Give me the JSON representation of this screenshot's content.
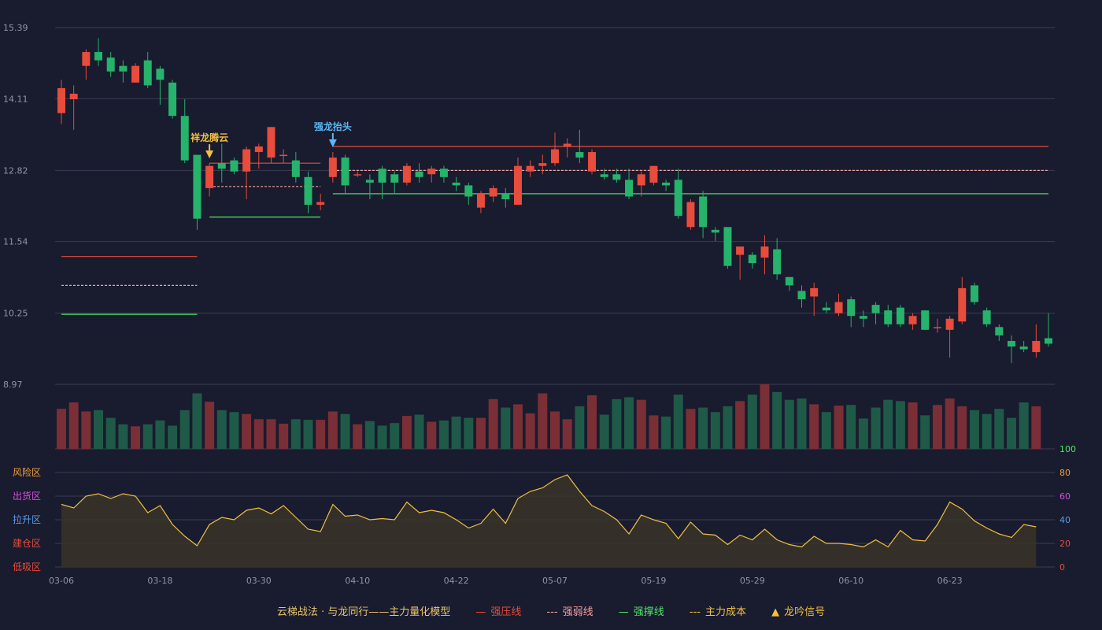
{
  "chart_data": {
    "type": "candlestick",
    "price_axis": {
      "ticks": [
        "15.39",
        "14.11",
        "12.82",
        "11.54",
        "10.25",
        "8.97"
      ],
      "ylim": [
        8.97,
        15.39
      ]
    },
    "x_tick_labels": [
      "03-06",
      "03-18",
      "03-30",
      "04-10",
      "04-22",
      "05-07",
      "05-19",
      "05-29",
      "06-10",
      "06-23"
    ],
    "candles": [
      [
        13.85,
        14.3,
        13.65,
        14.45
      ],
      [
        14.1,
        14.2,
        13.55,
        14.35
      ],
      [
        14.7,
        14.95,
        14.45,
        15.0
      ],
      [
        14.95,
        14.8,
        14.7,
        15.2
      ],
      [
        14.85,
        14.6,
        14.5,
        14.95
      ],
      [
        14.7,
        14.6,
        14.4,
        14.8
      ],
      [
        14.4,
        14.7,
        14.4,
        14.75
      ],
      [
        14.8,
        14.35,
        14.3,
        14.95
      ],
      [
        14.65,
        14.45,
        14.0,
        14.7
      ],
      [
        14.4,
        13.8,
        13.75,
        14.45
      ],
      [
        13.8,
        13.0,
        12.95,
        14.1
      ],
      [
        13.1,
        11.95,
        11.75,
        13.1
      ],
      [
        12.5,
        12.9,
        12.35,
        12.95
      ],
      [
        12.95,
        12.85,
        12.6,
        13.3
      ],
      [
        13.0,
        12.8,
        12.75,
        13.05
      ],
      [
        12.8,
        13.2,
        12.3,
        13.25
      ],
      [
        13.15,
        13.25,
        12.85,
        13.3
      ],
      [
        13.05,
        13.6,
        12.95,
        13.6
      ],
      [
        13.1,
        13.1,
        12.95,
        13.2
      ],
      [
        13.0,
        12.7,
        12.6,
        13.15
      ],
      [
        12.7,
        12.2,
        12.05,
        12.8
      ],
      [
        12.2,
        12.25,
        12.1,
        12.4
      ],
      [
        12.7,
        13.05,
        12.6,
        13.15
      ],
      [
        13.05,
        12.55,
        12.4,
        13.1
      ],
      [
        12.75,
        12.75,
        12.7,
        12.8
      ],
      [
        12.65,
        12.6,
        12.3,
        12.75
      ],
      [
        12.85,
        12.6,
        12.3,
        12.9
      ],
      [
        12.75,
        12.6,
        12.4,
        12.8
      ],
      [
        12.6,
        12.9,
        12.55,
        12.95
      ],
      [
        12.8,
        12.7,
        12.6,
        12.95
      ],
      [
        12.75,
        12.85,
        12.6,
        12.9
      ],
      [
        12.85,
        12.7,
        12.6,
        12.9
      ],
      [
        12.6,
        12.55,
        12.45,
        12.7
      ],
      [
        12.55,
        12.35,
        12.2,
        12.6
      ],
      [
        12.15,
        12.4,
        12.05,
        12.45
      ],
      [
        12.35,
        12.5,
        12.25,
        12.55
      ],
      [
        12.4,
        12.3,
        12.15,
        12.5
      ],
      [
        12.2,
        12.9,
        12.2,
        13.05
      ],
      [
        12.8,
        12.9,
        12.7,
        13.0
      ],
      [
        12.9,
        12.95,
        12.75,
        13.1
      ],
      [
        12.95,
        13.2,
        12.9,
        13.5
      ],
      [
        13.25,
        13.3,
        13.05,
        13.4
      ],
      [
        13.15,
        13.05,
        12.95,
        13.55
      ],
      [
        12.8,
        13.15,
        12.75,
        13.2
      ],
      [
        12.75,
        12.7,
        12.65,
        12.85
      ],
      [
        12.75,
        12.65,
        12.6,
        12.85
      ],
      [
        12.65,
        12.35,
        12.3,
        12.85
      ],
      [
        12.55,
        12.75,
        12.35,
        12.8
      ],
      [
        12.6,
        12.9,
        12.55,
        12.9
      ],
      [
        12.6,
        12.55,
        12.45,
        12.65
      ],
      [
        12.65,
        12.0,
        11.95,
        12.85
      ],
      [
        11.8,
        12.25,
        11.75,
        12.3
      ],
      [
        12.35,
        11.8,
        11.6,
        12.45
      ],
      [
        11.75,
        11.7,
        11.55,
        11.8
      ],
      [
        11.8,
        11.1,
        11.05,
        11.8
      ],
      [
        11.3,
        11.45,
        10.85,
        11.45
      ],
      [
        11.3,
        11.15,
        11.05,
        11.35
      ],
      [
        11.25,
        11.45,
        10.95,
        11.65
      ],
      [
        11.4,
        10.95,
        10.85,
        11.6
      ],
      [
        10.9,
        10.75,
        10.65,
        10.9
      ],
      [
        10.65,
        10.5,
        10.35,
        10.75
      ],
      [
        10.55,
        10.7,
        10.2,
        10.8
      ],
      [
        10.35,
        10.3,
        10.25,
        10.45
      ],
      [
        10.25,
        10.45,
        10.2,
        10.6
      ],
      [
        10.5,
        10.2,
        10.0,
        10.55
      ],
      [
        10.2,
        10.15,
        10.0,
        10.3
      ],
      [
        10.4,
        10.25,
        10.05,
        10.45
      ],
      [
        10.3,
        10.05,
        10.0,
        10.4
      ],
      [
        10.35,
        10.05,
        10.0,
        10.4
      ],
      [
        10.05,
        10.2,
        9.95,
        10.25
      ],
      [
        10.3,
        9.95,
        9.95,
        10.3
      ],
      [
        10.0,
        10.0,
        9.9,
        10.15
      ],
      [
        9.95,
        10.15,
        9.45,
        10.2
      ],
      [
        10.1,
        10.7,
        10.05,
        10.9
      ],
      [
        10.75,
        10.45,
        10.4,
        10.8
      ],
      [
        10.3,
        10.05,
        10.0,
        10.35
      ],
      [
        10.0,
        9.85,
        9.75,
        10.05
      ],
      [
        9.75,
        9.65,
        9.35,
        9.85
      ],
      [
        9.65,
        9.6,
        9.55,
        9.75
      ],
      [
        9.55,
        9.75,
        9.45,
        10.05
      ],
      [
        9.8,
        9.7,
        9.65,
        10.25
      ]
    ],
    "volume_rel": [
      0.62,
      0.72,
      0.58,
      0.6,
      0.48,
      0.38,
      0.35,
      0.38,
      0.44,
      0.36,
      0.6,
      0.86,
      0.73,
      0.6,
      0.57,
      0.54,
      0.46,
      0.46,
      0.39,
      0.46,
      0.45,
      0.45,
      0.58,
      0.54,
      0.38,
      0.43,
      0.36,
      0.4,
      0.51,
      0.53,
      0.42,
      0.44,
      0.5,
      0.48,
      0.48,
      0.77,
      0.64,
      0.69,
      0.55,
      0.86,
      0.58,
      0.46,
      0.66,
      0.83,
      0.53,
      0.77,
      0.8,
      0.76,
      0.52,
      0.5,
      0.84,
      0.62,
      0.64,
      0.57,
      0.66,
      0.74,
      0.84,
      1.0,
      0.88,
      0.76,
      0.78,
      0.69,
      0.57,
      0.67,
      0.68,
      0.47,
      0.64,
      0.76,
      0.74,
      0.72,
      0.52,
      0.68,
      0.78,
      0.66,
      0.6,
      0.54,
      0.62,
      0.48,
      0.72,
      0.66
    ],
    "indicator": {
      "ylim": [
        0,
        100
      ],
      "ticks": [
        "0",
        "20",
        "40",
        "60",
        "80",
        "100"
      ],
      "zones": [
        "风险区",
        "出货区",
        "拉升区",
        "建仓区",
        "低吸区"
      ],
      "values": [
        53,
        50,
        60,
        62,
        58,
        62,
        60,
        46,
        52,
        36,
        26,
        18,
        36,
        42,
        40,
        48,
        50,
        45,
        52,
        42,
        32,
        30,
        53,
        43,
        44,
        40,
        41,
        40,
        55,
        46,
        48,
        46,
        40,
        33,
        37,
        49,
        37,
        58,
        64,
        67,
        74,
        78,
        64,
        52,
        47,
        40,
        28,
        44,
        40,
        37,
        24,
        38,
        28,
        27,
        19,
        27,
        23,
        32,
        23,
        19,
        17,
        26,
        20,
        20,
        19,
        17,
        23,
        17,
        31,
        23,
        22,
        36,
        55,
        49,
        39,
        33,
        28,
        25,
        36,
        34
      ]
    },
    "levels": {
      "qiangya": [
        {
          "from": 0,
          "to": 11,
          "value": 10.25,
          "y": 11.05
        },
        {
          "from": 12,
          "to": 21,
          "value": 12.95
        },
        {
          "from": 22,
          "to": 80,
          "value": 13.15
        }
      ],
      "qiangruo": [
        {
          "from": 0,
          "to": 11,
          "value": 10.8
        },
        {
          "from": 12,
          "to": 21,
          "value": 12.5
        },
        {
          "from": 22,
          "to": 80,
          "value": 12.8
        }
      ],
      "qiangcheng": [
        {
          "from": 0,
          "to": 11,
          "value": 10.2
        },
        {
          "from": 12,
          "to": 21,
          "value": 12.0
        },
        {
          "from": 22,
          "to": 80,
          "value": 12.4
        }
      ]
    },
    "signals": [
      {
        "index": 12,
        "label": "祥龙腾云",
        "color": "#f0c040"
      },
      {
        "index": 22,
        "label": "强龙抬头",
        "color": "#5bb8f5"
      }
    ]
  },
  "legend": {
    "title": "云梯战法 · 与龙同行——主力量化模型",
    "items": [
      {
        "label": "强压线",
        "color": "#e74c3c",
        "sym": "—"
      },
      {
        "label": "强弱线",
        "color": "#f5a0a0",
        "sym": "---"
      },
      {
        "label": "强撑线",
        "color": "#4ee66a",
        "sym": "—"
      },
      {
        "label": "主力成本",
        "color": "#f0c040",
        "sym": "---"
      },
      {
        "label": "龙吟信号",
        "color": "#f0c040",
        "sym": "▲"
      }
    ]
  },
  "colors": {
    "up": "#e74c3c",
    "down": "#26b36b",
    "grid": "#3a3d52",
    "line": "#f0c040"
  }
}
